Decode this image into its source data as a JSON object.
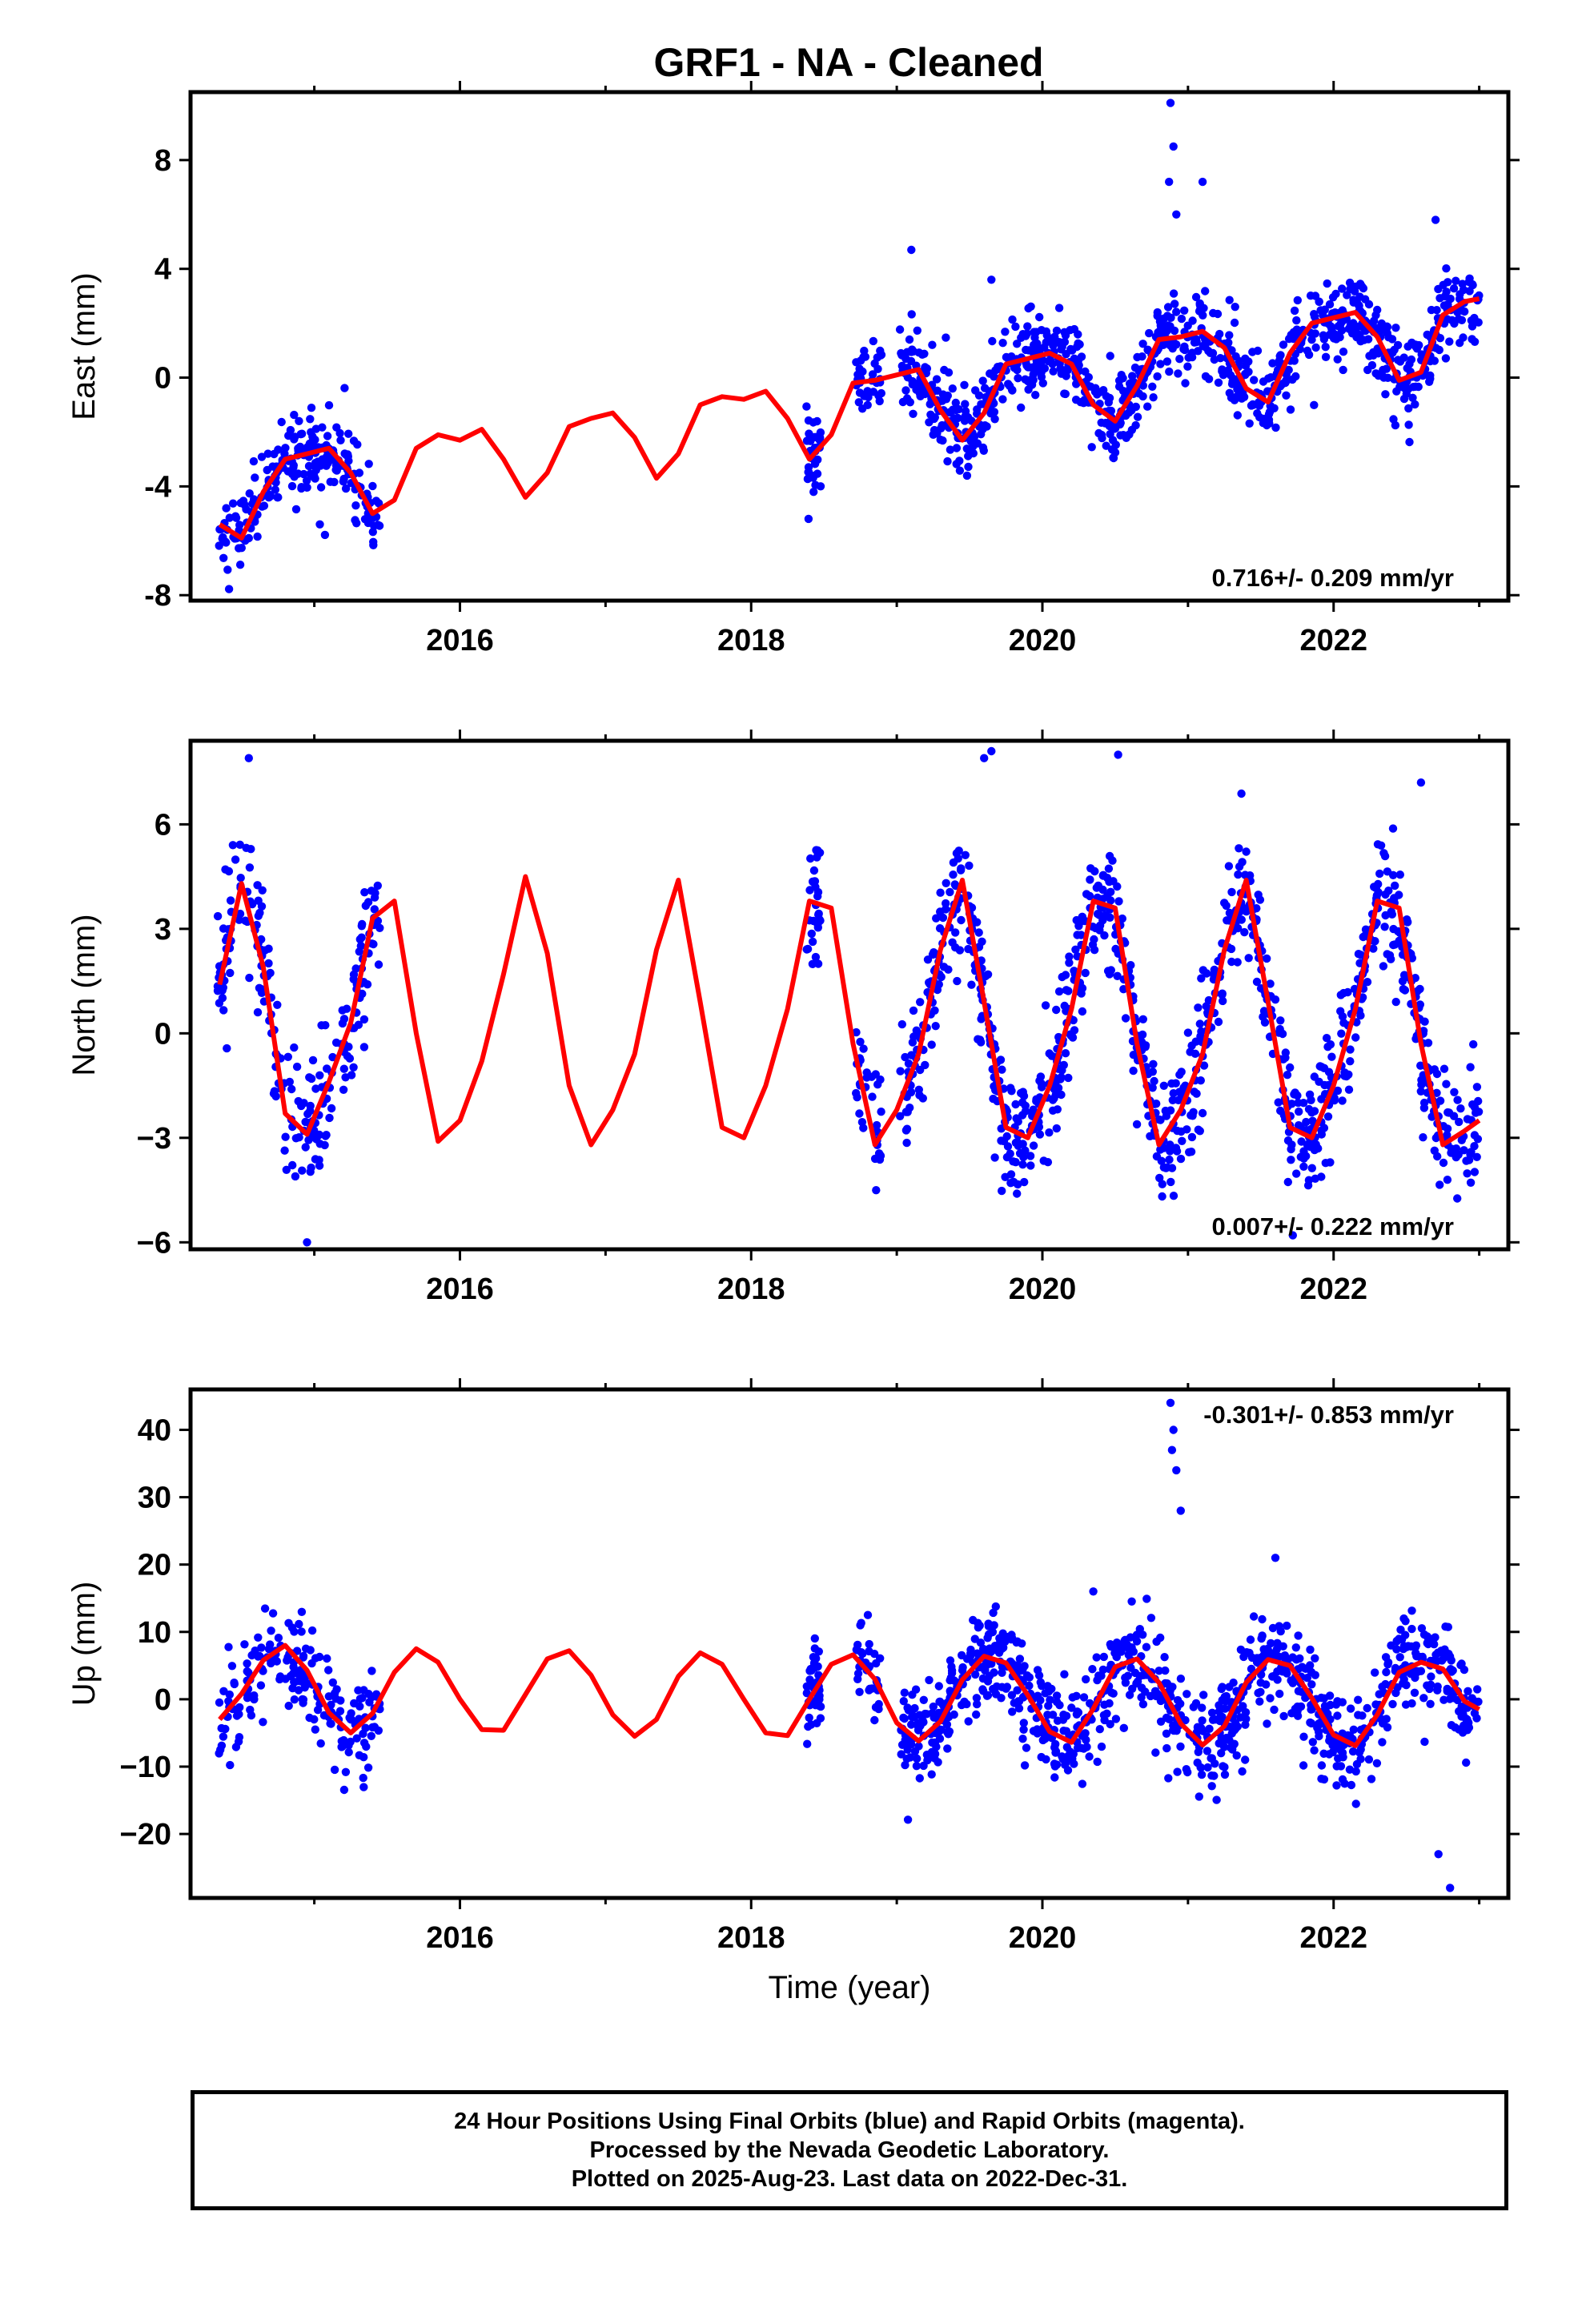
{
  "colors": {
    "data_points": "#0000ff",
    "model_curve": "#ff0000",
    "frame": "#000000",
    "background": "#ffffff"
  },
  "footer": {
    "line1": "24 Hour Positions Using Final Orbits (blue) and Rapid Orbits (magenta).",
    "line2": "Processed by the Nevada Geodetic Laboratory.",
    "line3": "Plotted on 2025-Aug-23. Last data on 2022-Dec-31."
  },
  "chart_data": [
    {
      "type": "scatter",
      "title": "GRF1  - NA - Cleaned",
      "ylabel": "East (mm)",
      "xlabel": "",
      "xlim": [
        2014.15,
        2023.2
      ],
      "ylim": [
        -8.2,
        10.5
      ],
      "xticks": [
        2016,
        2018,
        2020,
        2022
      ],
      "xtick_labels": [
        "2016",
        "2018",
        "2020",
        "2022"
      ],
      "yticks": [
        -8,
        -4,
        0,
        4,
        8
      ],
      "ytick_labels": [
        "-8",
        "-4",
        "0",
        "4",
        "8"
      ],
      "annotation": "0.716+/- 0.209 mm/yr",
      "annotation_position": "bottom-right",
      "grid": false,
      "model_series": {
        "x": [
          2014.35,
          2014.5,
          2014.65,
          2014.8,
          2014.95,
          2015.1,
          2015.25,
          2015.4,
          2015.55,
          2015.7,
          2015.85,
          2016.0,
          2016.15,
          2016.3,
          2016.45,
          2016.6,
          2016.75,
          2016.9,
          2017.05,
          2017.2,
          2017.35,
          2017.5,
          2017.65,
          2017.8,
          2017.95,
          2018.1,
          2018.25,
          2018.4,
          2018.55,
          2018.7,
          2018.85,
          2019.0,
          2019.15,
          2019.3,
          2019.45,
          2019.6,
          2019.75,
          2019.9,
          2020.05,
          2020.2,
          2020.35,
          2020.5,
          2020.65,
          2020.8,
          2020.95,
          2021.1,
          2021.25,
          2021.4,
          2021.55,
          2021.7,
          2021.85,
          2022.0,
          2022.15,
          2022.3,
          2022.45,
          2022.6,
          2022.75,
          2022.9,
          2023.0
        ],
        "y": [
          -5.4,
          -5.9,
          -4.2,
          -3.0,
          -2.8,
          -2.6,
          -3.5,
          -5.0,
          -4.5,
          -2.6,
          -2.1,
          -2.3,
          -1.9,
          -3.0,
          -4.4,
          -3.5,
          -1.8,
          -1.5,
          -1.3,
          -2.2,
          -3.7,
          -2.8,
          -1.0,
          -0.7,
          -0.8,
          -0.5,
          -1.5,
          -3.0,
          -2.1,
          -0.2,
          -0.1,
          0.1,
          0.3,
          -1.2,
          -2.3,
          -1.3,
          0.5,
          0.7,
          0.9,
          0.5,
          -1.0,
          -1.6,
          -0.3,
          1.4,
          1.5,
          1.7,
          1.1,
          -0.4,
          -0.9,
          0.9,
          2.0,
          2.2,
          2.4,
          1.5,
          -0.1,
          0.2,
          2.3,
          2.8,
          2.9
        ]
      },
      "outliers": {
        "x": [
          2020.88,
          2020.9,
          2020.87,
          2020.92,
          2021.1,
          2022.7,
          2019.1,
          2019.65
        ],
        "y": [
          10.1,
          8.5,
          7.2,
          6.0,
          7.2,
          5.8,
          4.7,
          3.6
        ]
      }
    },
    {
      "type": "scatter",
      "title": "",
      "ylabel": "North (mm)",
      "xlabel": "",
      "xlim": [
        2014.15,
        2023.2
      ],
      "ylim": [
        -6.2,
        8.4
      ],
      "xticks": [
        2016,
        2018,
        2020,
        2022
      ],
      "xtick_labels": [
        "2016",
        "2018",
        "2020",
        "2022"
      ],
      "yticks": [
        -6,
        -3,
        0,
        3,
        6
      ],
      "ytick_labels": [
        "−6",
        "−3",
        "0",
        "3",
        "6"
      ],
      "annotation": "0.007+/- 0.222 mm/yr",
      "annotation_position": "bottom-right",
      "grid": false,
      "model_series": {
        "x": [
          2014.35,
          2014.5,
          2014.65,
          2014.8,
          2014.95,
          2015.1,
          2015.25,
          2015.4,
          2015.55,
          2015.7,
          2015.85,
          2016.0,
          2016.15,
          2016.3,
          2016.45,
          2016.6,
          2016.75,
          2016.9,
          2017.05,
          2017.2,
          2017.35,
          2017.5,
          2017.65,
          2017.8,
          2017.95,
          2018.1,
          2018.25,
          2018.4,
          2018.55,
          2018.7,
          2018.85,
          2019.0,
          2019.15,
          2019.3,
          2019.45,
          2019.6,
          2019.75,
          2019.9,
          2020.05,
          2020.2,
          2020.35,
          2020.5,
          2020.65,
          2020.8,
          2020.95,
          2021.1,
          2021.25,
          2021.4,
          2021.55,
          2021.7,
          2021.85,
          2022.0,
          2022.15,
          2022.3,
          2022.45,
          2022.6,
          2022.75,
          2022.9,
          2023.0
        ],
        "y": [
          1.4,
          4.3,
          1.9,
          -2.3,
          -2.9,
          -1.4,
          0.3,
          3.3,
          3.8,
          0.0,
          -3.1,
          -2.5,
          -0.8,
          1.7,
          4.5,
          2.3,
          -1.5,
          -3.2,
          -2.2,
          -0.6,
          2.4,
          4.4,
          0.9,
          -2.7,
          -3.0,
          -1.5,
          0.7,
          3.8,
          3.6,
          -0.3,
          -3.2,
          -2.2,
          -0.6,
          2.4,
          4.4,
          0.9,
          -2.7,
          -3.0,
          -1.5,
          0.7,
          3.8,
          3.6,
          -0.3,
          -3.2,
          -2.2,
          -0.6,
          2.4,
          4.4,
          0.9,
          -2.7,
          -3.0,
          -1.5,
          0.7,
          3.8,
          3.6,
          -0.3,
          -3.2,
          -2.8,
          -2.5
        ]
      },
      "outliers": {
        "x": [
          2014.55,
          2019.6,
          2019.65,
          2020.52,
          2014.95,
          2022.6,
          2021.72
        ],
        "y": [
          7.9,
          7.9,
          8.1,
          8.0,
          -6.0,
          7.2,
          -5.8
        ]
      }
    },
    {
      "type": "scatter",
      "title": "",
      "ylabel": "Up (mm)",
      "xlabel": "Time (year)",
      "xlim": [
        2014.15,
        2023.2
      ],
      "ylim": [
        -29.5,
        46
      ],
      "xticks": [
        2016,
        2018,
        2020,
        2022
      ],
      "xtick_labels": [
        "2016",
        "2018",
        "2020",
        "2022"
      ],
      "yticks": [
        -20,
        -10,
        0,
        10,
        20,
        30,
        40
      ],
      "ytick_labels": [
        "−20",
        "−10",
        "0",
        "10",
        "20",
        "30",
        "40"
      ],
      "annotation": "-0.301+/- 0.853 mm/yr",
      "annotation_position": "top-right",
      "grid": false,
      "model_series": {
        "x": [
          2014.35,
          2014.5,
          2014.65,
          2014.8,
          2014.95,
          2015.1,
          2015.25,
          2015.4,
          2015.55,
          2015.7,
          2015.85,
          2016.0,
          2016.15,
          2016.3,
          2016.45,
          2016.6,
          2016.75,
          2016.9,
          2017.05,
          2017.2,
          2017.35,
          2017.5,
          2017.65,
          2017.8,
          2017.95,
          2018.1,
          2018.25,
          2018.4,
          2018.55,
          2018.7,
          2018.85,
          2019.0,
          2019.15,
          2019.3,
          2019.45,
          2019.6,
          2019.75,
          2019.9,
          2020.05,
          2020.2,
          2020.35,
          2020.5,
          2020.65,
          2020.8,
          2020.95,
          2021.1,
          2021.25,
          2021.4,
          2021.55,
          2021.7,
          2021.85,
          2022.0,
          2022.15,
          2022.3,
          2022.45,
          2022.6,
          2022.75,
          2022.9,
          2023.0
        ],
        "y": [
          -3.0,
          0.8,
          5.8,
          8.0,
          4.3,
          -2.0,
          -5.0,
          -2.1,
          4.0,
          7.5,
          5.5,
          0.0,
          -4.5,
          -4.6,
          0.7,
          6.0,
          7.2,
          3.6,
          -2.3,
          -5.5,
          -3.0,
          3.4,
          6.9,
          5.2,
          0.0,
          -5.0,
          -5.4,
          0.0,
          5.2,
          6.6,
          3.0,
          -3.5,
          -6.2,
          -3.3,
          2.9,
          6.4,
          5.4,
          0.6,
          -4.8,
          -6.4,
          -1.4,
          4.8,
          6.0,
          2.5,
          -3.6,
          -6.8,
          -4.0,
          2.5,
          5.9,
          5.0,
          0.2,
          -5.3,
          -6.9,
          -2.3,
          4.0,
          5.5,
          4.5,
          -0.3,
          -1.5
        ]
      },
      "outliers": {
        "x": [
          2020.88,
          2020.9,
          2020.89,
          2020.92,
          2020.95,
          2022.72,
          2022.8,
          2021.6,
          2020.35,
          2018.75
        ],
        "y": [
          44,
          40,
          37,
          34,
          28,
          -23,
          -28,
          21,
          16,
          11
        ]
      }
    }
  ]
}
